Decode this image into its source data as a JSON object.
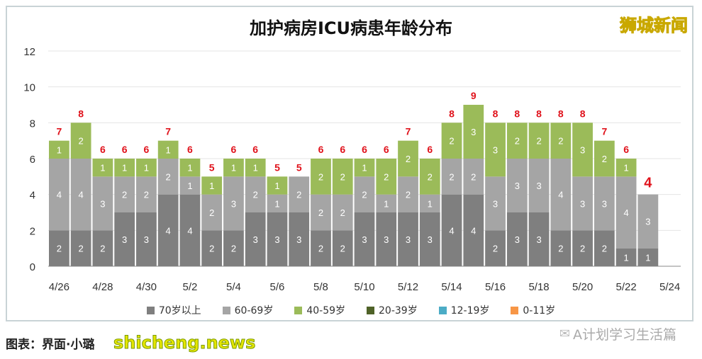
{
  "watermark": "狮城新闻",
  "footer": {
    "credit": "图表：界面·小璐",
    "site": "shicheng.news",
    "account": "A计划学习生活篇",
    "account_icon": "wechat-icon"
  },
  "chart_data": {
    "type": "bar",
    "stacked": true,
    "title": "加护病房ICU病患年龄分布",
    "xlabel": "",
    "ylabel": "",
    "ylim": [
      0,
      12
    ],
    "yticks": [
      0,
      2,
      4,
      6,
      8,
      10,
      12
    ],
    "grid": true,
    "legend_position": "bottom",
    "categories": [
      "4/26",
      "4/27",
      "4/28",
      "4/29",
      "4/30",
      "5/1",
      "5/2",
      "5/3",
      "5/4",
      "5/5",
      "5/6",
      "5/7",
      "5/8",
      "5/9",
      "5/10",
      "5/11",
      "5/12",
      "5/13",
      "5/14",
      "5/15",
      "5/16",
      "5/17",
      "5/18",
      "5/19",
      "5/20",
      "5/21",
      "5/22",
      "5/23",
      "5/24"
    ],
    "xtick_labels": [
      "4/26",
      "4/28",
      "4/30",
      "5/2",
      "5/4",
      "5/6",
      "5/8",
      "5/10",
      "5/12",
      "5/14",
      "5/16",
      "5/18",
      "5/20",
      "5/22",
      "5/24"
    ],
    "series": [
      {
        "name": "70岁以上",
        "color": "#7f7f7f",
        "values": [
          2,
          2,
          2,
          3,
          3,
          4,
          4,
          2,
          2,
          3,
          3,
          3,
          2,
          2,
          3,
          3,
          3,
          3,
          4,
          4,
          2,
          3,
          3,
          2,
          2,
          2,
          1,
          1,
          null
        ]
      },
      {
        "name": "60-69岁",
        "color": "#a5a5a5",
        "values": [
          4,
          4,
          3,
          2,
          2,
          2,
          1,
          2,
          3,
          2,
          1,
          2,
          2,
          2,
          2,
          1,
          2,
          1,
          2,
          2,
          3,
          3,
          3,
          4,
          3,
          3,
          4,
          3,
          null
        ]
      },
      {
        "name": "40-59岁",
        "color": "#9bbb59",
        "values": [
          1,
          2,
          1,
          1,
          1,
          1,
          1,
          1,
          1,
          1,
          1,
          0,
          2,
          2,
          1,
          2,
          2,
          2,
          2,
          3,
          3,
          2,
          2,
          2,
          3,
          2,
          1,
          0,
          null
        ]
      },
      {
        "name": "20-39岁",
        "color": "#4f6228",
        "values": [
          0,
          0,
          0,
          0,
          0,
          0,
          0,
          0,
          0,
          0,
          0,
          0,
          0,
          0,
          0,
          0,
          0,
          0,
          0,
          0,
          0,
          0,
          0,
          0,
          0,
          0,
          0,
          0,
          null
        ]
      },
      {
        "name": "12-19岁",
        "color": "#4bacc6",
        "values": [
          0,
          0,
          0,
          0,
          0,
          0,
          0,
          0,
          0,
          0,
          0,
          0,
          0,
          0,
          0,
          0,
          0,
          0,
          0,
          0,
          0,
          0,
          0,
          0,
          0,
          0,
          0,
          0,
          null
        ]
      },
      {
        "name": "0-11岁",
        "color": "#f79646",
        "values": [
          0,
          0,
          0,
          0,
          0,
          0,
          0,
          0,
          0,
          0,
          0,
          0,
          0,
          0,
          0,
          0,
          0,
          0,
          0,
          0,
          0,
          0,
          0,
          0,
          0,
          0,
          0,
          0,
          null
        ]
      }
    ],
    "totals": [
      7,
      8,
      6,
      6,
      6,
      7,
      6,
      5,
      6,
      6,
      5,
      5,
      6,
      6,
      6,
      6,
      7,
      6,
      8,
      9,
      8,
      8,
      8,
      8,
      8,
      7,
      6,
      4,
      null
    ],
    "total_label_color": "#e0121b"
  }
}
